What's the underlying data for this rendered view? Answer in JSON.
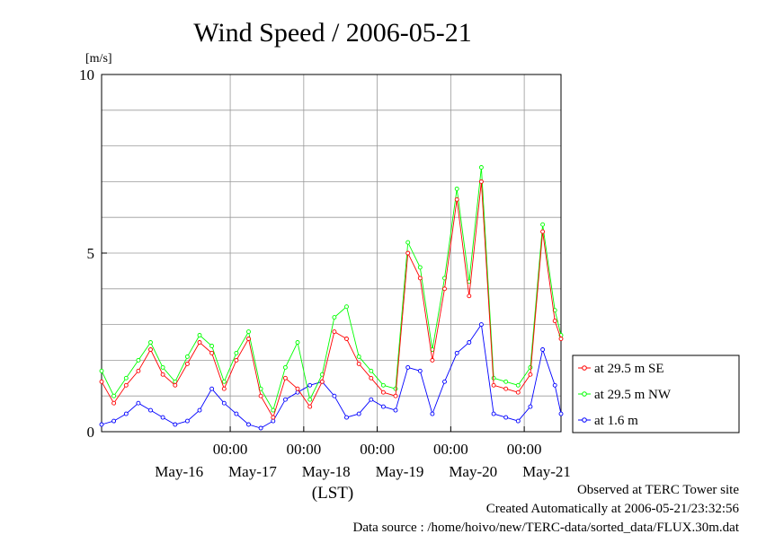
{
  "chart_data": {
    "type": "line",
    "title": "Wind Speed / 2006-05-21",
    "ylabel": "[m/s]",
    "xlabel": "(LST)",
    "ylim": [
      0,
      10
    ],
    "xlim": [
      "2006-05-15T06:00",
      "2006-05-21T12:00"
    ],
    "yticks": [
      "0",
      "5",
      "10"
    ],
    "xtick_times": [
      "00:00",
      "00:00",
      "00:00",
      "00:00",
      "00:00"
    ],
    "xtick_positions": [
      "2006-05-17T00:00",
      "2006-05-18T00:00",
      "2006-05-19T00:00",
      "2006-05-20T00:00",
      "2006-05-21T00:00"
    ],
    "x_day_labels": [
      "May-16",
      "May-17",
      "May-18",
      "May-19",
      "May-20",
      "May-21"
    ],
    "x_day_positions": [
      "2006-05-16T12:00",
      "2006-05-17T12:00",
      "2006-05-18T12:00",
      "2006-05-19T12:00",
      "2006-05-20T12:00",
      "2006-05-21T12:00"
    ],
    "grid": true,
    "legend_position": "right",
    "series": [
      {
        "name": "at 29.5 m SE",
        "color": "#ff0000",
        "x": [
          "2006-05-15T06:00",
          "2006-05-15T10:00",
          "2006-05-15T14:00",
          "2006-05-15T18:00",
          "2006-05-15T22:00",
          "2006-05-16T02:00",
          "2006-05-16T06:00",
          "2006-05-16T10:00",
          "2006-05-16T14:00",
          "2006-05-16T18:00",
          "2006-05-16T22:00",
          "2006-05-17T02:00",
          "2006-05-17T06:00",
          "2006-05-17T10:00",
          "2006-05-17T14:00",
          "2006-05-17T18:00",
          "2006-05-17T22:00",
          "2006-05-18T02:00",
          "2006-05-18T06:00",
          "2006-05-18T10:00",
          "2006-05-18T14:00",
          "2006-05-18T18:00",
          "2006-05-18T22:00",
          "2006-05-19T02:00",
          "2006-05-19T06:00",
          "2006-05-19T10:00",
          "2006-05-19T14:00",
          "2006-05-19T18:00",
          "2006-05-19T22:00",
          "2006-05-20T02:00",
          "2006-05-20T06:00",
          "2006-05-20T10:00",
          "2006-05-20T14:00",
          "2006-05-20T18:00",
          "2006-05-20T22:00",
          "2006-05-21T02:00",
          "2006-05-21T06:00",
          "2006-05-21T10:00",
          "2006-05-21T12:00"
        ],
        "values": [
          1.4,
          0.8,
          1.3,
          1.7,
          2.3,
          1.6,
          1.3,
          1.9,
          2.5,
          2.2,
          1.2,
          2.0,
          2.6,
          1.0,
          0.4,
          1.5,
          1.2,
          0.7,
          1.4,
          2.8,
          2.6,
          1.9,
          1.5,
          1.1,
          1.0,
          5.0,
          4.3,
          2.0,
          4.0,
          6.5,
          3.8,
          7.0,
          1.3,
          1.2,
          1.1,
          1.6,
          5.6,
          3.1,
          2.6
        ]
      },
      {
        "name": "at 29.5 m NW",
        "color": "#00ff00",
        "x": [
          "2006-05-15T06:00",
          "2006-05-15T10:00",
          "2006-05-15T14:00",
          "2006-05-15T18:00",
          "2006-05-15T22:00",
          "2006-05-16T02:00",
          "2006-05-16T06:00",
          "2006-05-16T10:00",
          "2006-05-16T14:00",
          "2006-05-16T18:00",
          "2006-05-16T22:00",
          "2006-05-17T02:00",
          "2006-05-17T06:00",
          "2006-05-17T10:00",
          "2006-05-17T14:00",
          "2006-05-17T18:00",
          "2006-05-17T22:00",
          "2006-05-18T02:00",
          "2006-05-18T06:00",
          "2006-05-18T10:00",
          "2006-05-18T14:00",
          "2006-05-18T18:00",
          "2006-05-18T22:00",
          "2006-05-19T02:00",
          "2006-05-19T06:00",
          "2006-05-19T10:00",
          "2006-05-19T14:00",
          "2006-05-19T18:00",
          "2006-05-19T22:00",
          "2006-05-20T02:00",
          "2006-05-20T06:00",
          "2006-05-20T10:00",
          "2006-05-20T14:00",
          "2006-05-20T18:00",
          "2006-05-20T22:00",
          "2006-05-21T02:00",
          "2006-05-21T06:00",
          "2006-05-21T10:00",
          "2006-05-21T12:00"
        ],
        "values": [
          1.7,
          1.0,
          1.5,
          2.0,
          2.5,
          1.8,
          1.4,
          2.1,
          2.7,
          2.4,
          1.4,
          2.2,
          2.8,
          1.2,
          0.6,
          1.8,
          2.5,
          0.9,
          1.6,
          3.2,
          3.5,
          2.1,
          1.7,
          1.3,
          1.2,
          5.3,
          4.6,
          2.3,
          4.3,
          6.8,
          4.2,
          7.4,
          1.5,
          1.4,
          1.3,
          1.8,
          5.8,
          3.4,
          2.7
        ]
      },
      {
        "name": "at 1.6 m",
        "color": "#0000ff",
        "x": [
          "2006-05-15T06:00",
          "2006-05-15T10:00",
          "2006-05-15T14:00",
          "2006-05-15T18:00",
          "2006-05-15T22:00",
          "2006-05-16T02:00",
          "2006-05-16T06:00",
          "2006-05-16T10:00",
          "2006-05-16T14:00",
          "2006-05-16T18:00",
          "2006-05-16T22:00",
          "2006-05-17T02:00",
          "2006-05-17T06:00",
          "2006-05-17T10:00",
          "2006-05-17T14:00",
          "2006-05-17T18:00",
          "2006-05-17T22:00",
          "2006-05-18T02:00",
          "2006-05-18T06:00",
          "2006-05-18T10:00",
          "2006-05-18T14:00",
          "2006-05-18T18:00",
          "2006-05-18T22:00",
          "2006-05-19T02:00",
          "2006-05-19T06:00",
          "2006-05-19T10:00",
          "2006-05-19T14:00",
          "2006-05-19T18:00",
          "2006-05-19T22:00",
          "2006-05-20T02:00",
          "2006-05-20T06:00",
          "2006-05-20T10:00",
          "2006-05-20T14:00",
          "2006-05-20T18:00",
          "2006-05-20T22:00",
          "2006-05-21T02:00",
          "2006-05-21T06:00",
          "2006-05-21T10:00",
          "2006-05-21T12:00"
        ],
        "values": [
          0.2,
          0.3,
          0.5,
          0.8,
          0.6,
          0.4,
          0.2,
          0.3,
          0.6,
          1.2,
          0.8,
          0.5,
          0.2,
          0.1,
          0.3,
          0.9,
          1.1,
          1.3,
          1.4,
          1.0,
          0.4,
          0.5,
          0.9,
          0.7,
          0.6,
          1.8,
          1.7,
          0.5,
          1.4,
          2.2,
          2.5,
          3.0,
          0.5,
          0.4,
          0.3,
          0.7,
          2.3,
          1.3,
          0.5
        ]
      }
    ]
  },
  "footer": {
    "observed": "Observed at TERC Tower site",
    "created": "Created Automatically at 2006-05-21/23:32:56",
    "source": "Data source : /home/hoivo/new/TERC-data/sorted_data/FLUX.30m.dat"
  }
}
